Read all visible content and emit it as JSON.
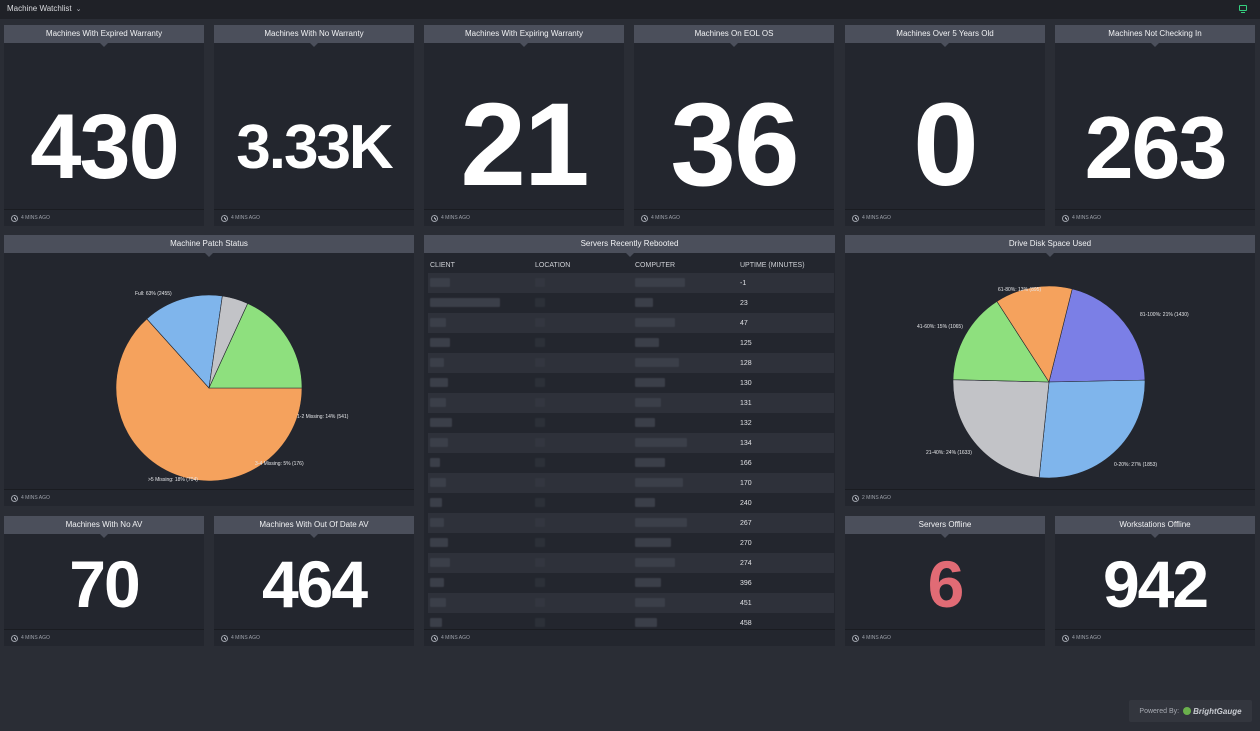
{
  "topbar": {
    "title": "Machine Watchlist"
  },
  "footer_time": "4 MINS AGO",
  "footer_time_alt": "2 MINS AGO",
  "tiles_row1": [
    {
      "title": "Machines With Expired Warranty",
      "value": "430"
    },
    {
      "title": "Machines With No Warranty",
      "value": "3.33K"
    },
    {
      "title": "Machines With Expiring Warranty",
      "value": "21"
    },
    {
      "title": "Machines On EOL OS",
      "value": "36"
    },
    {
      "title": "Machines Over 5 Years Old",
      "value": "0"
    },
    {
      "title": "Machines Not Checking In",
      "value": "263"
    }
  ],
  "patch_status": {
    "title": "Machine Patch Status",
    "chart_data": {
      "type": "pie",
      "slices": [
        {
          "label": "Full: 63% (2455)",
          "value": 2455,
          "color": "#f5a25d"
        },
        {
          "label": "1-2 Missing: 14% (541)",
          "value": 541,
          "color": "#7fb5ec"
        },
        {
          "label": "3-4 Missing: 5% (176)",
          "value": 176,
          "color": "#c2c3c7"
        },
        {
          "label": ">5 Missing: 18% (704)",
          "value": 704,
          "color": "#8ee07e"
        }
      ]
    }
  },
  "servers": {
    "title": "Servers Recently Rebooted",
    "columns": [
      "CLIENT",
      "LOCATION",
      "COMPUTER",
      "UPTIME (MINUTES)"
    ],
    "uptimes": [
      "-1",
      "23",
      "47",
      "125",
      "128",
      "130",
      "131",
      "132",
      "134",
      "166",
      "170",
      "240",
      "267",
      "270",
      "274",
      "396",
      "451",
      "458"
    ]
  },
  "disk_space": {
    "title": "Drive Disk Space Used",
    "chart_data": {
      "type": "pie",
      "slices": [
        {
          "label": "81-100%: 21% (1430)",
          "value": 1430,
          "color": "#7b7fe6"
        },
        {
          "label": "0-20%: 27% (1853)",
          "value": 1853,
          "color": "#7fb5ec"
        },
        {
          "label": "21-40%: 24% (1633)",
          "value": 1633,
          "color": "#c2c3c7"
        },
        {
          "label": "41-60%: 15% (1065)",
          "value": 1065,
          "color": "#8ee07e"
        },
        {
          "label": "61-80%: 13% (895)",
          "value": 895,
          "color": "#f5a25d"
        }
      ]
    }
  },
  "tiles_row3": [
    {
      "title": "Machines With No AV",
      "value": "70"
    },
    {
      "title": "Machines With Out Of Date AV",
      "value": "464"
    },
    {
      "title": "Servers Offline",
      "value": "6",
      "color": "#e16b75"
    },
    {
      "title": "Workstations Offline",
      "value": "942"
    }
  ],
  "powered": {
    "label": "Powered By:",
    "brand": "BrightGauge"
  }
}
